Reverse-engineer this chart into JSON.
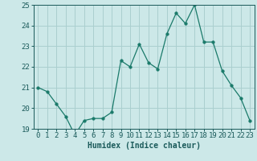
{
  "x": [
    0,
    1,
    2,
    3,
    4,
    5,
    6,
    7,
    8,
    9,
    10,
    11,
    12,
    13,
    14,
    15,
    16,
    17,
    18,
    19,
    20,
    21,
    22,
    23
  ],
  "y": [
    21.0,
    20.8,
    20.2,
    19.6,
    18.7,
    19.4,
    19.5,
    19.5,
    19.8,
    22.3,
    22.0,
    23.1,
    22.2,
    21.9,
    23.6,
    24.6,
    24.1,
    25.0,
    23.2,
    23.2,
    21.8,
    21.1,
    20.5,
    19.4
  ],
  "line_color": "#1a7a6a",
  "marker": "o",
  "marker_size": 2.5,
  "background_color": "#cce8e8",
  "grid_color": "#aacfcf",
  "xlabel": "Humidex (Indice chaleur)",
  "ylim": [
    19,
    25
  ],
  "xlim": [
    -0.5,
    23.5
  ],
  "yticks": [
    19,
    20,
    21,
    22,
    23,
    24,
    25
  ],
  "xticks": [
    0,
    1,
    2,
    3,
    4,
    5,
    6,
    7,
    8,
    9,
    10,
    11,
    12,
    13,
    14,
    15,
    16,
    17,
    18,
    19,
    20,
    21,
    22,
    23
  ],
  "label_fontsize": 7,
  "tick_fontsize": 6.5
}
